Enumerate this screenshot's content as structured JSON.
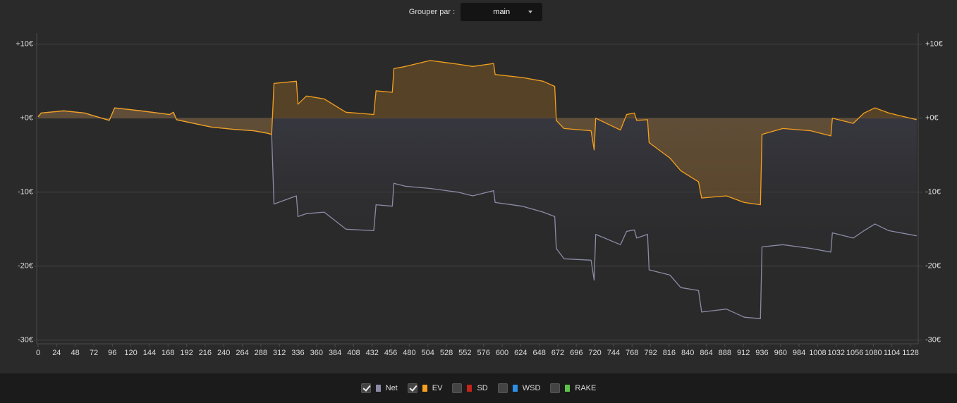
{
  "controls": {
    "group_by_label": "Grouper par :",
    "group_by_value": "main"
  },
  "chart_data": {
    "type": "line",
    "x": [
      0,
      4,
      33,
      60,
      92,
      99,
      133,
      170,
      175,
      179,
      206,
      224,
      252,
      279,
      295,
      302,
      305,
      334,
      336,
      347,
      370,
      398,
      434,
      437,
      458,
      460,
      475,
      507,
      543,
      562,
      589,
      591,
      626,
      653,
      668,
      670,
      680,
      715,
      719,
      721,
      753,
      761,
      771,
      774,
      788,
      790,
      817,
      831,
      854,
      858,
      890,
      913,
      934,
      936,
      963,
      999,
      1025,
      1027,
      1054,
      1068,
      1082,
      1100,
      1136
    ],
    "series": [
      {
        "name": "Net",
        "color": "#8b8ba6",
        "visible": true,
        "values": [
          0.2,
          0.7,
          1.0,
          0.7,
          -0.3,
          1.4,
          1.0,
          0.5,
          0.8,
          -0.2,
          -0.8,
          -1.2,
          -1.5,
          -1.7,
          -2.0,
          -2.2,
          -11.6,
          -10.5,
          -13.3,
          -12.9,
          -12.7,
          -15.0,
          -15.2,
          -11.7,
          -11.9,
          -8.8,
          -9.2,
          -9.5,
          -10.0,
          -10.5,
          -9.8,
          -11.4,
          -11.9,
          -12.7,
          -13.3,
          -17.6,
          -19.0,
          -19.2,
          -21.9,
          -15.7,
          -17.1,
          -15.3,
          -15.1,
          -16.2,
          -15.7,
          -20.5,
          -21.2,
          -22.9,
          -23.3,
          -26.2,
          -25.8,
          -26.9,
          -27.1,
          -17.4,
          -17.1,
          -17.6,
          -18.1,
          -15.5,
          -16.2,
          -15.2,
          -14.3,
          -15.2,
          -15.9
        ]
      },
      {
        "name": "EV",
        "color": "#f5a01e",
        "visible": true,
        "values": [
          0.2,
          0.7,
          1.0,
          0.7,
          -0.3,
          1.4,
          1.0,
          0.5,
          0.8,
          -0.2,
          -0.8,
          -1.2,
          -1.5,
          -1.7,
          -2.0,
          -2.2,
          4.7,
          5.0,
          1.9,
          3.0,
          2.6,
          0.8,
          0.5,
          3.7,
          3.5,
          6.7,
          7.0,
          7.8,
          7.3,
          7.0,
          7.4,
          5.9,
          5.5,
          5.0,
          4.3,
          -0.3,
          -1.4,
          -1.7,
          -4.3,
          0,
          -1.6,
          0.5,
          0.7,
          -0.3,
          -0.2,
          -3.3,
          -5.4,
          -7.1,
          -8.6,
          -10.8,
          -10.5,
          -11.4,
          -11.7,
          -2.2,
          -1.4,
          -1.7,
          -2.4,
          0,
          -0.7,
          0.7,
          1.4,
          0.7,
          -0.2
        ]
      }
    ],
    "extra_toggles": [
      {
        "name": "SD",
        "color": "#c0241a",
        "visible": false
      },
      {
        "name": "WSD",
        "color": "#2f8fe8",
        "visible": false
      },
      {
        "name": "RAKE",
        "color": "#5cc24a",
        "visible": false
      }
    ],
    "xlim": [
      0,
      1138
    ],
    "xticks": [
      0,
      24,
      48,
      72,
      96,
      120,
      144,
      168,
      192,
      216,
      240,
      264,
      288,
      312,
      336,
      360,
      384,
      408,
      432,
      456,
      480,
      504,
      528,
      552,
      576,
      600,
      624,
      648,
      672,
      696,
      720,
      744,
      768,
      792,
      816,
      840,
      864,
      888,
      912,
      936,
      960,
      984,
      1008,
      1032,
      1056,
      1080,
      1104,
      1128
    ],
    "ylim": [
      -30.5,
      11.5
    ],
    "yticks": [
      {
        "value": 10,
        "label": "+10€"
      },
      {
        "value": 0,
        "label": "+0€"
      },
      {
        "value": -10,
        "label": "-10€"
      },
      {
        "value": -20,
        "label": "-20€"
      },
      {
        "value": -30,
        "label": "-30€"
      }
    ],
    "grid": true
  }
}
